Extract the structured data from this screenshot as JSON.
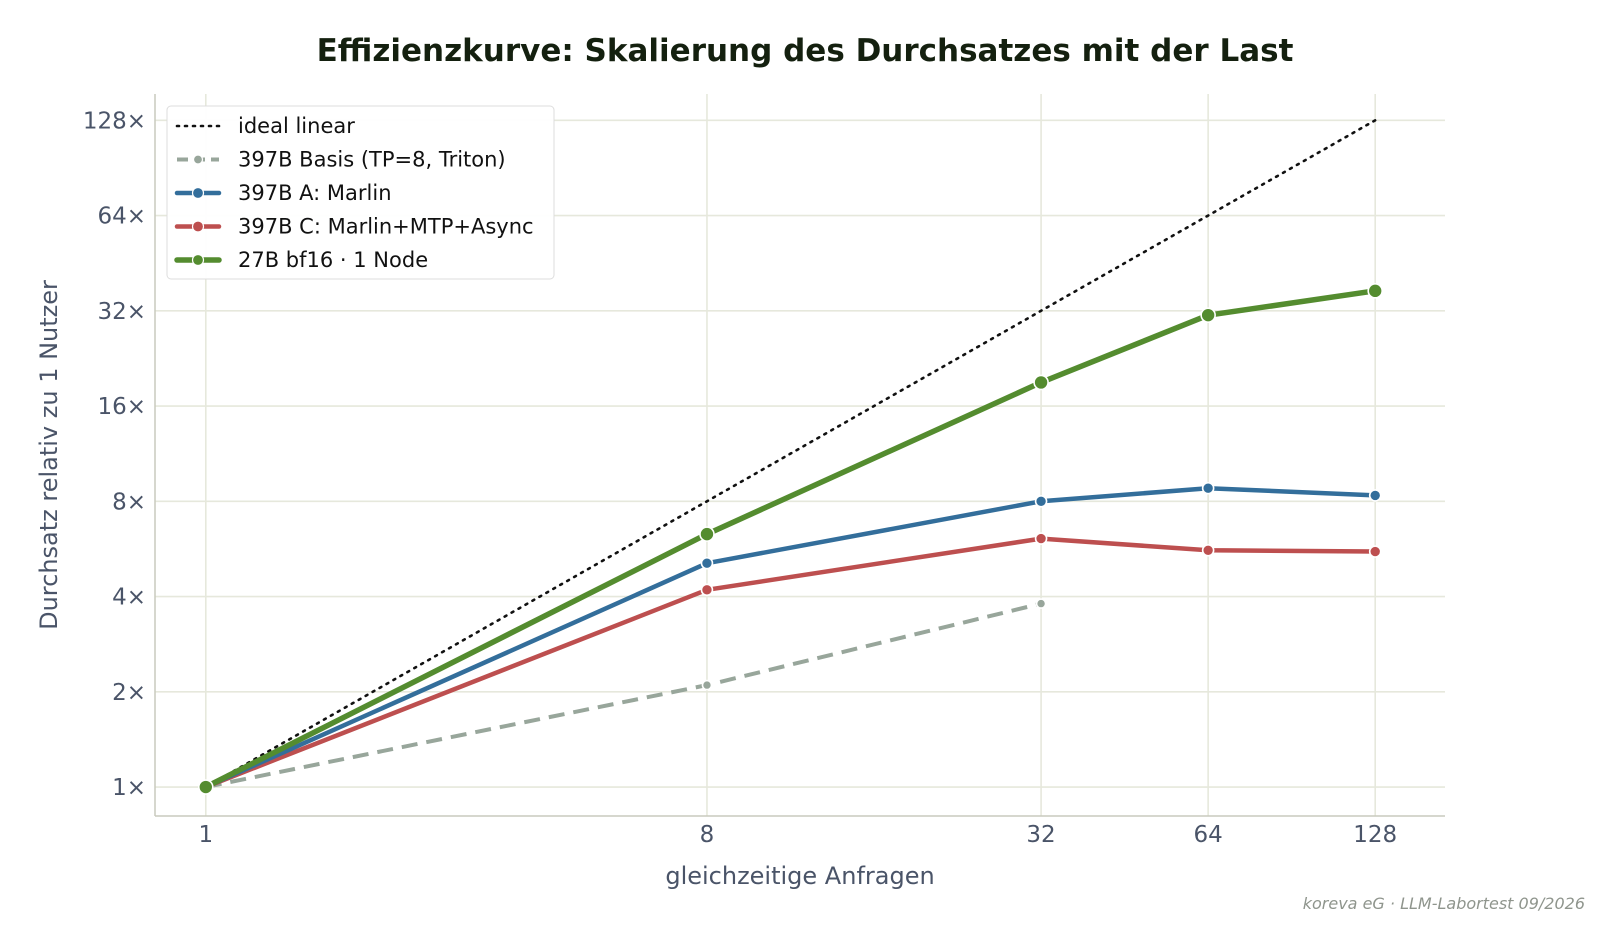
{
  "chart_data": {
    "type": "line",
    "title": "Effizienzkurve: Skalierung des Durchsatzes mit der Last",
    "xlabel": "gleichzeitige Anfragen",
    "ylabel": "Durchsatz relativ zu 1 Nutzer",
    "x_scale": "log2",
    "y_scale": "log2",
    "xlim": [
      0.81,
      171
    ],
    "ylim": [
      0.81,
      155
    ],
    "x_ticks": [
      1,
      8,
      32,
      64,
      128
    ],
    "x_tick_labels": [
      "1",
      "8",
      "32",
      "64",
      "128"
    ],
    "y_ticks": [
      1,
      2,
      4,
      8,
      16,
      32,
      64,
      128
    ],
    "y_tick_labels": [
      "1×",
      "2×",
      "4×",
      "8×",
      "16×",
      "32×",
      "64×",
      "128×"
    ],
    "grid": true,
    "legend_position": "top-left",
    "series": [
      {
        "name": "ideal linear",
        "color": "#111111",
        "style": "dotted",
        "marker": "none",
        "x": [
          1,
          128
        ],
        "y": [
          1,
          128
        ]
      },
      {
        "name": "397B Basis (TP=8, Triton)",
        "color": "#98a69b",
        "style": "dashed",
        "marker": "small",
        "x": [
          1,
          8,
          32
        ],
        "y": [
          1,
          2.1,
          3.8
        ]
      },
      {
        "name": "397B A: Marlin",
        "color": "#336e9b",
        "style": "solid",
        "marker": "medium",
        "x": [
          1,
          8,
          32,
          64,
          128
        ],
        "y": [
          1,
          5.1,
          8.0,
          8.8,
          8.35
        ]
      },
      {
        "name": "397B C: Marlin+MTP+Async",
        "color": "#bd4f4f",
        "style": "solid",
        "marker": "medium",
        "x": [
          1,
          8,
          32,
          64,
          128
        ],
        "y": [
          1,
          4.2,
          6.1,
          5.6,
          5.55
        ]
      },
      {
        "name": "27B bf16 · 1 Node",
        "color": "#548c2f",
        "style": "solid-bold",
        "marker": "large",
        "x": [
          1,
          8,
          32,
          64,
          128
        ],
        "y": [
          1,
          6.3,
          19,
          31,
          37
        ]
      }
    ]
  },
  "credit": "koreva eG · LLM-Labortest 09/2026"
}
